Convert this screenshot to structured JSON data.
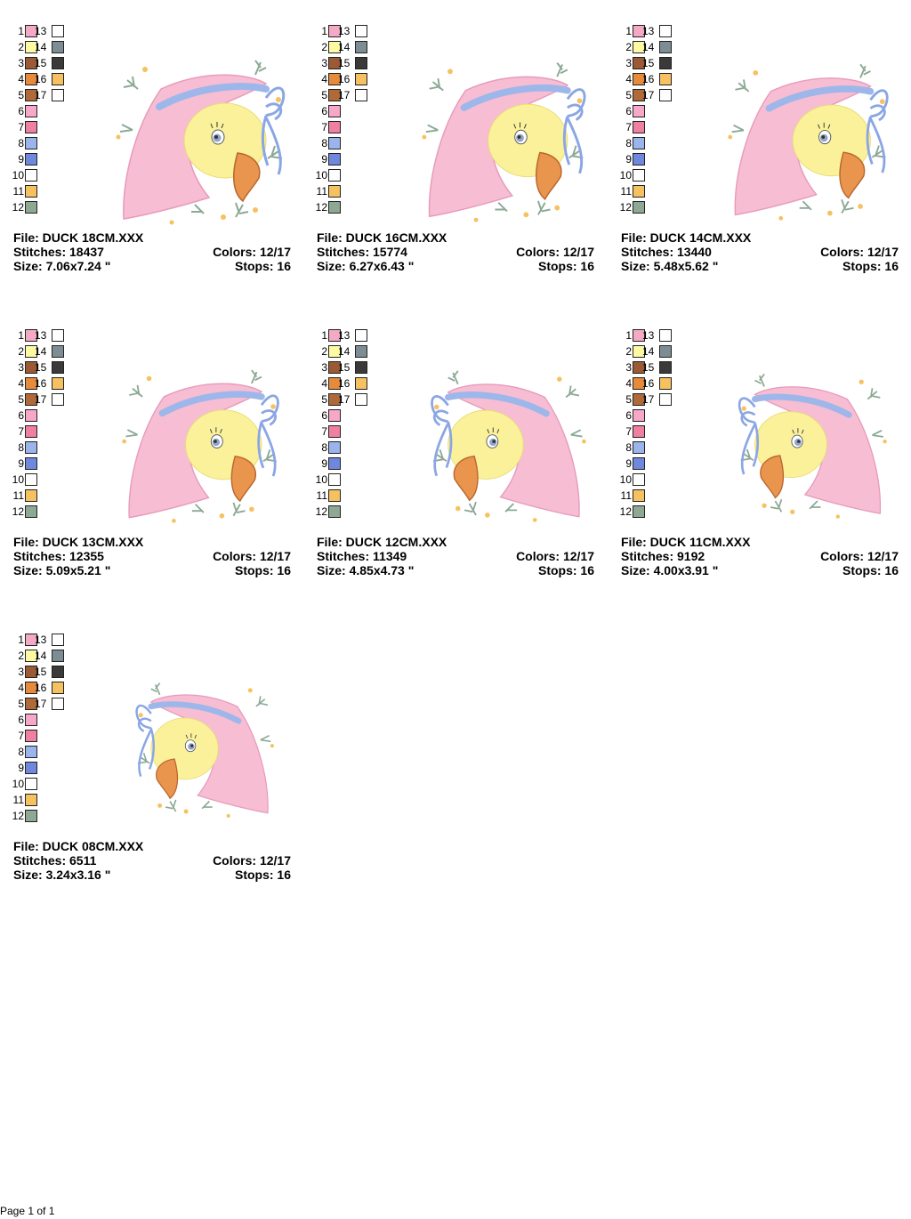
{
  "palette": {
    "numbers_left": [
      "1",
      "2",
      "3",
      "4",
      "5",
      "6",
      "7",
      "8",
      "9",
      "10",
      "11",
      "12"
    ],
    "numbers_right": [
      "13",
      "14",
      "15",
      "16",
      "17"
    ],
    "colors_left": [
      "#f4a9c6",
      "#fdfaa3",
      "#9b5a35",
      "#e68a3c",
      "#b06a3a",
      "#f7a8c8",
      "#ef7fa3",
      "#9cb4ec",
      "#6f88dd",
      "#ffffff",
      "#f6c160",
      "#8fa894"
    ],
    "colors_right": [
      "#ffffff",
      "#7d8e93",
      "#3a3a3a",
      "#f6c160",
      "#ffffff"
    ]
  },
  "colors": {
    "bonnet": "#f7bdd3",
    "bonnet_dark": "#eea6c3",
    "band": "#9db7ea",
    "ribbon": "#8aa6e4",
    "face": "#faf19a",
    "beak": "#e9954d",
    "beak_dark": "#b9652e",
    "leaf": "#8ca995",
    "flower": "#f6c160"
  },
  "designs": [
    {
      "file_label": "File: DUCK 18CM.XXX",
      "stitches_label": "Stitches: 18437",
      "size_label": "Size: 7.06x7.24 \"",
      "colors_label": "Colors: 12/17",
      "stops_label": "Stops: 16"
    },
    {
      "file_label": "File: DUCK 16CM.XXX",
      "stitches_label": "Stitches: 15774",
      "size_label": "Size: 6.27x6.43 \"",
      "colors_label": "Colors: 12/17",
      "stops_label": "Stops: 16"
    },
    {
      "file_label": "File: DUCK 14CM.XXX",
      "stitches_label": "Stitches: 13440",
      "size_label": "Size: 5.48x5.62 \"",
      "colors_label": "Colors: 12/17",
      "stops_label": "Stops: 16"
    },
    {
      "file_label": "File: DUCK 13CM.XXX",
      "stitches_label": "Stitches: 12355",
      "size_label": "Size: 5.09x5.21 \"",
      "colors_label": "Colors: 12/17",
      "stops_label": "Stops: 16"
    },
    {
      "file_label": "File: DUCK 12CM.XXX",
      "stitches_label": "Stitches: 11349",
      "size_label": "Size: 4.85x4.73 \"",
      "colors_label": "Colors: 12/17",
      "stops_label": "Stops: 16"
    },
    {
      "file_label": "File: DUCK 11CM.XXX",
      "stitches_label": "Stitches: 9192",
      "size_label": "Size: 4.00x3.91 \"",
      "colors_label": "Colors: 12/17",
      "stops_label": "Stops: 16"
    },
    {
      "file_label": "File: DUCK 08CM.XXX",
      "stitches_label": "Stitches: 6511",
      "size_label": "Size: 3.24x3.16 \"",
      "colors_label": "Colors: 12/17",
      "stops_label": "Stops: 16"
    }
  ],
  "footer": {
    "page_label": "Page 1 of 1"
  }
}
